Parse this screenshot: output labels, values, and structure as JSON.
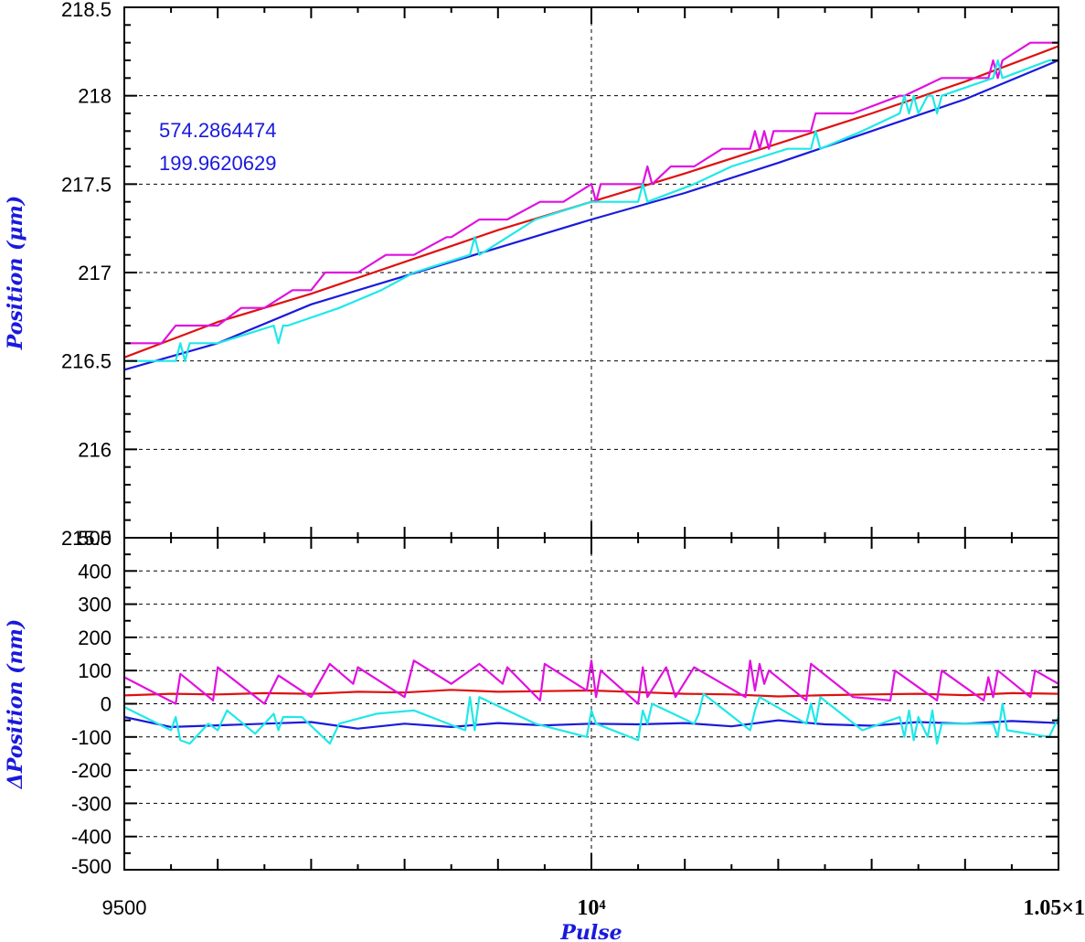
{
  "chart_data": [
    {
      "type": "line",
      "title": "",
      "ylabel": "Position (μm)",
      "xlabel": "",
      "xlim": [
        9500,
        10500
      ],
      "ylim": [
        215.5,
        218.5
      ],
      "grid": true,
      "ytick_labels": [
        "218.5",
        "218",
        "217.5",
        "217",
        "216.5",
        "216",
        "215.5"
      ],
      "annotations": [
        "574.2864474",
        "199.9620629"
      ],
      "series_colors": [
        "#1a1adc",
        "#e01010",
        "#e010e0",
        "#20e8e8"
      ],
      "series": [
        {
          "color": "#1a1adc",
          "x": [
            9500,
            9600,
            9700,
            9800,
            9900,
            10000,
            10100,
            10200,
            10300,
            10400,
            10500
          ],
          "y": [
            216.45,
            216.6,
            216.82,
            216.98,
            217.14,
            217.3,
            217.45,
            217.62,
            217.8,
            217.98,
            218.2
          ]
        },
        {
          "color": "#e01010",
          "x": [
            9500,
            9600,
            9700,
            9800,
            9900,
            10000,
            10100,
            10200,
            10300,
            10400,
            10500
          ],
          "y": [
            216.52,
            216.72,
            216.88,
            217.06,
            217.24,
            217.4,
            217.56,
            217.73,
            217.9,
            218.08,
            218.28
          ]
        },
        {
          "color": "#e010e0",
          "x": [
            9500,
            9540,
            9555,
            9595,
            9600,
            9625,
            9650,
            9680,
            9700,
            9715,
            9745,
            9750,
            9780,
            9810,
            9845,
            9850,
            9880,
            9910,
            9945,
            9950,
            9970,
            10000,
            10005,
            10010,
            10015,
            10055,
            10060,
            10065,
            10085,
            10090,
            10110,
            10140,
            10170,
            10175,
            10180,
            10185,
            10190,
            10195,
            10235,
            10240,
            10280,
            10330,
            10335,
            10375,
            10425,
            10430,
            10435,
            10440,
            10470,
            10500
          ],
          "y": [
            216.6,
            216.6,
            216.7,
            216.7,
            216.7,
            216.8,
            216.8,
            216.9,
            216.9,
            217.0,
            217.0,
            217.0,
            217.1,
            217.1,
            217.2,
            217.2,
            217.3,
            217.3,
            217.4,
            217.4,
            217.4,
            217.5,
            217.4,
            217.5,
            217.5,
            217.5,
            217.6,
            217.5,
            217.6,
            217.6,
            217.6,
            217.7,
            217.7,
            217.8,
            217.7,
            217.8,
            217.7,
            217.8,
            217.8,
            217.9,
            217.9,
            218.0,
            218.0,
            218.1,
            218.1,
            218.2,
            218.1,
            218.2,
            218.3,
            218.3
          ]
        },
        {
          "color": "#20e8e8",
          "x": [
            9500,
            9555,
            9560,
            9565,
            9570,
            9600,
            9660,
            9665,
            9670,
            9675,
            9730,
            9775,
            9810,
            9870,
            9875,
            9880,
            9940,
            10000,
            10050,
            10055,
            10060,
            10110,
            10150,
            10210,
            10235,
            10240,
            10245,
            10290,
            10330,
            10335,
            10340,
            10345,
            10350,
            10360,
            10365,
            10370,
            10375,
            10430,
            10435,
            10440,
            10490,
            10500
          ],
          "y": [
            216.5,
            216.5,
            216.6,
            216.5,
            216.6,
            216.6,
            216.7,
            216.6,
            216.7,
            216.7,
            216.8,
            216.9,
            217.0,
            217.1,
            217.2,
            217.1,
            217.3,
            217.4,
            217.4,
            217.5,
            217.4,
            217.5,
            217.6,
            217.7,
            217.7,
            217.8,
            217.7,
            217.8,
            217.9,
            218.0,
            217.9,
            218.0,
            217.9,
            218.0,
            218.0,
            217.9,
            218.0,
            218.1,
            218.2,
            218.1,
            218.2,
            218.2
          ]
        }
      ]
    },
    {
      "type": "line",
      "title": "",
      "ylabel": "ΔPosition (nm)",
      "xlabel": "Pulse",
      "xlim": [
        9500,
        10500
      ],
      "ylim": [
        -500,
        500
      ],
      "grid": true,
      "ytick_labels": [
        "500",
        "400",
        "300",
        "200",
        "100",
        "0",
        "-100",
        "-200",
        "-300",
        "-400",
        "-500"
      ],
      "xtick_labels": [
        "9500",
        "10⁴",
        "1.05×1"
      ],
      "series": [
        {
          "color": "#1a1adc",
          "x": [
            9500,
            9550,
            9600,
            9650,
            9700,
            9750,
            9800,
            9850,
            9900,
            9950,
            10000,
            10050,
            10100,
            10150,
            10200,
            10250,
            10300,
            10350,
            10400,
            10450,
            10500
          ],
          "y": [
            -40,
            -70,
            -65,
            -60,
            -55,
            -75,
            -60,
            -70,
            -58,
            -65,
            -60,
            -62,
            -58,
            -68,
            -50,
            -62,
            -66,
            -55,
            -60,
            -52,
            -58
          ]
        },
        {
          "color": "#e01010",
          "x": [
            9500,
            9550,
            9600,
            9650,
            9700,
            9750,
            9800,
            9850,
            9900,
            9950,
            10000,
            10050,
            10100,
            10150,
            10200,
            10250,
            10300,
            10350,
            10400,
            10450,
            10500
          ],
          "y": [
            25,
            30,
            28,
            32,
            30,
            36,
            34,
            42,
            36,
            38,
            40,
            35,
            30,
            28,
            22,
            26,
            28,
            30,
            26,
            32,
            30
          ]
        },
        {
          "color": "#e010e0",
          "x": [
            9500,
            9555,
            9560,
            9595,
            9600,
            9650,
            9665,
            9700,
            9720,
            9745,
            9750,
            9800,
            9810,
            9850,
            9880,
            9905,
            9910,
            9945,
            9950,
            9995,
            10000,
            10005,
            10010,
            10050,
            10055,
            10060,
            10080,
            10090,
            10110,
            10165,
            10170,
            10175,
            10180,
            10185,
            10190,
            10230,
            10235,
            10280,
            10320,
            10325,
            10370,
            10375,
            10420,
            10425,
            10430,
            10435,
            10470,
            10475,
            10500
          ],
          "y": [
            80,
            0,
            90,
            10,
            110,
            0,
            85,
            20,
            120,
            60,
            110,
            20,
            130,
            60,
            120,
            60,
            110,
            10,
            120,
            40,
            130,
            20,
            100,
            0,
            110,
            20,
            110,
            20,
            110,
            20,
            130,
            40,
            120,
            60,
            100,
            10,
            120,
            20,
            10,
            100,
            10,
            100,
            10,
            80,
            20,
            100,
            20,
            100,
            60
          ]
        },
        {
          "color": "#20e8e8",
          "x": [
            9500,
            9550,
            9555,
            9560,
            9570,
            9590,
            9600,
            9610,
            9640,
            9660,
            9665,
            9670,
            9690,
            9720,
            9730,
            9770,
            9810,
            9865,
            9870,
            9875,
            9880,
            9940,
            9995,
            10000,
            10005,
            10050,
            10055,
            10060,
            10065,
            10110,
            10115,
            10120,
            10170,
            10175,
            10180,
            10230,
            10235,
            10240,
            10245,
            10290,
            10330,
            10335,
            10340,
            10345,
            10350,
            10360,
            10365,
            10370,
            10375,
            10430,
            10435,
            10440,
            10445,
            10490,
            10500
          ],
          "y": [
            -10,
            -80,
            -40,
            -110,
            -120,
            -60,
            -80,
            -20,
            -90,
            -30,
            -80,
            -40,
            -40,
            -120,
            -60,
            -30,
            -20,
            -80,
            20,
            -80,
            20,
            -60,
            -100,
            -20,
            -60,
            -110,
            -20,
            -60,
            0,
            -60,
            -30,
            30,
            -80,
            -20,
            20,
            -60,
            0,
            -60,
            20,
            -80,
            -40,
            -100,
            -20,
            -110,
            -40,
            -100,
            -20,
            -120,
            -60,
            -60,
            -100,
            0,
            -80,
            -100,
            -40
          ]
        }
      ]
    }
  ]
}
